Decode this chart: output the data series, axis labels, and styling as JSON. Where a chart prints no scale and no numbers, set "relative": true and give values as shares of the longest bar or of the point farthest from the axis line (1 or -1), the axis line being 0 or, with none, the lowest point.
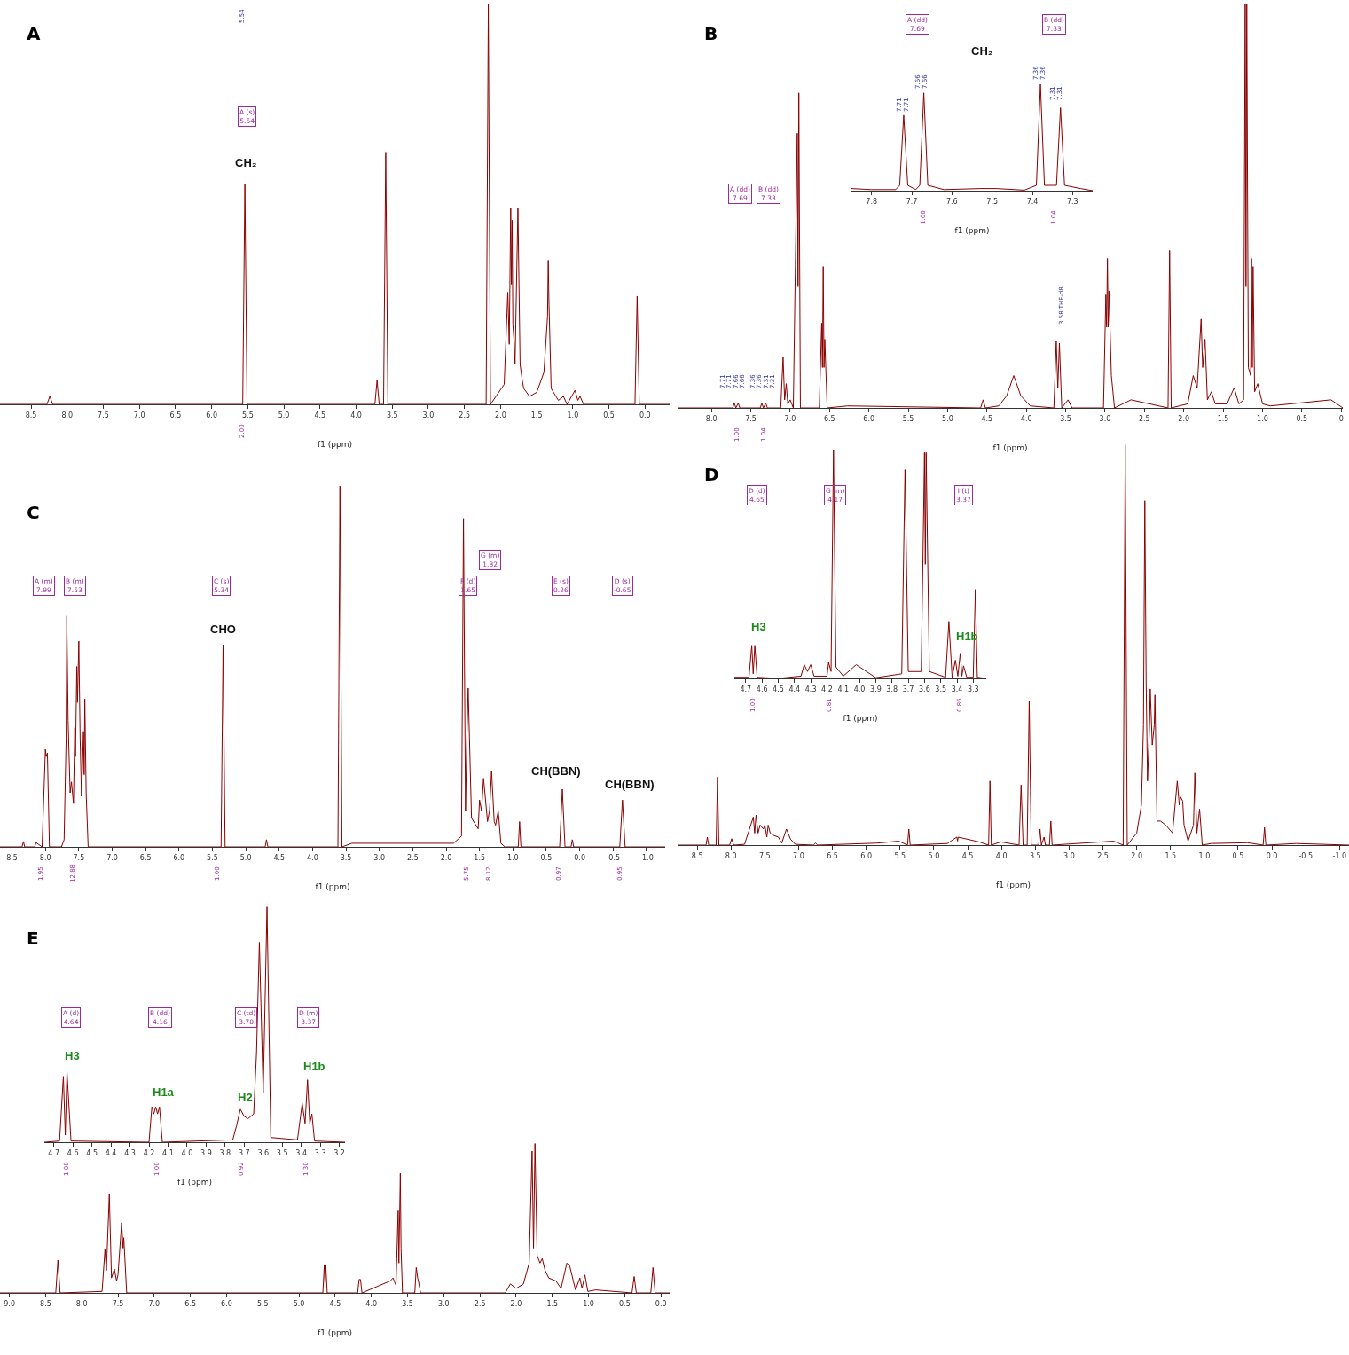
{
  "chart_data": [
    {
      "type": "line",
      "title": "A",
      "xlabel": "f1 (ppm)",
      "relative": true,
      "xlim": [
        8.93,
        -0.34
      ],
      "xticks": [
        8.5,
        {
          "value": 8,
          "label": "8.0"
        },
        7.5,
        {
          "value": 7,
          "label": "7.0"
        },
        6.5,
        {
          "value": 6,
          "label": "6.0"
        },
        5.5,
        {
          "value": 5,
          "label": "5.0"
        },
        4.5,
        {
          "value": 4,
          "label": "4.0"
        },
        3.5,
        {
          "value": 3,
          "label": "3.0"
        },
        2.5,
        {
          "value": 2,
          "label": "2.0"
        },
        1.5,
        {
          "value": 1,
          "label": "1.0"
        },
        0.5,
        {
          "value": 0,
          "label": "0.0"
        }
      ],
      "x": [
        8.93,
        8.28,
        8.24,
        8.2,
        5.57,
        5.54,
        5.51,
        3.74,
        3.71,
        3.68,
        3.62,
        3.59,
        3.56,
        2.2,
        2.17,
        2.14,
        1.95,
        1.9,
        1.88,
        1.86,
        1.85,
        1.84,
        1.83,
        1.81,
        1.8,
        1.76,
        1.73,
        1.7,
        1.68,
        1.6,
        1.5,
        1.4,
        1.35,
        1.34,
        1.33,
        1.3,
        1.2,
        1.13,
        1.08,
        0.97,
        0.93,
        0.9,
        0.85,
        0.14,
        0.11,
        0.08,
        -0.34
      ],
      "series": [
        {
          "color": "#8b0000",
          "values": [
            0,
            0,
            0.02,
            0,
            0,
            0.55,
            0,
            0,
            0.06,
            0,
            0,
            0.63,
            0,
            0,
            1,
            0,
            0.05,
            0.28,
            0.15,
            0.49,
            0.3,
            0.46,
            0.2,
            0.15,
            0.1,
            0.49,
            0.1,
            0.06,
            0.04,
            0.02,
            0.03,
            0.08,
            0.22,
            0.36,
            0.25,
            0.04,
            0.01,
            0.02,
            0,
            0.035,
            0.01,
            0.02,
            0,
            0,
            0.27,
            0,
            0
          ]
        }
      ],
      "annotations": [
        "5.54",
        "A (s)\n5.54",
        "CH₂",
        "2.00"
      ]
    },
    {
      "type": "line",
      "title": "B",
      "xlabel": "f1 (ppm)",
      "relative": true,
      "xlim": [
        8.43,
        -0.02
      ],
      "xticks": [
        {
          "value": 8,
          "label": "8.0"
        },
        7.5,
        {
          "value": 7,
          "label": "7.0"
        },
        6.5,
        {
          "value": 6,
          "label": "6.0"
        },
        5.5,
        {
          "value": 5,
          "label": "5.0"
        },
        4.5,
        {
          "value": 4,
          "label": "4.0"
        },
        3.5,
        {
          "value": 3,
          "label": "3.0"
        },
        2.5,
        {
          "value": 2,
          "label": "2.0"
        },
        1.5,
        {
          "value": 1,
          "label": "1.0"
        },
        0.5,
        0
      ],
      "x": [
        8.43,
        7.73,
        7.71,
        7.69,
        7.66,
        7.64,
        7.38,
        7.36,
        7.34,
        7.31,
        7.29,
        7.12,
        7.09,
        7.07,
        7.05,
        7.03,
        7.0,
        6.96,
        6.91,
        6.9,
        6.89,
        6.87,
        6.63,
        6.6,
        6.59,
        6.58,
        6.57,
        6.56,
        6.53,
        6.27,
        4.58,
        4.55,
        4.52,
        4.35,
        4.25,
        4.16,
        4.07,
        3.95,
        3.65,
        3.62,
        3.6,
        3.58,
        3.55,
        3.47,
        3.42,
        3.02,
        2.99,
        2.98,
        2.97,
        2.96,
        2.95,
        2.92,
        2.88,
        2.67,
        2.2,
        2.18,
        2.16,
        1.95,
        1.88,
        1.83,
        1.78,
        1.76,
        1.73,
        1.7,
        1.65,
        1.6,
        1.45,
        1.36,
        1.3,
        1.24,
        1.22,
        1.21,
        1.2,
        1.18,
        1.15,
        1.14,
        1.13,
        1.12,
        1.1,
        1.06,
        1.0,
        0.9,
        0.13,
        -0.02
      ],
      "series": [
        {
          "color": "#8b0000",
          "values": [
            0,
            0,
            0.012,
            0,
            0.012,
            0,
            0,
            0.012,
            0,
            0.012,
            0,
            0,
            0.125,
            0.02,
            0.06,
            0.01,
            0.02,
            0,
            0.68,
            0.3,
            0.78,
            0,
            0,
            0.21,
            0.1,
            0.35,
            0.1,
            0.17,
            0,
            0.005,
            0,
            0.02,
            0,
            0.005,
            0.03,
            0.08,
            0.03,
            0.005,
            0,
            0.165,
            0.05,
            0.16,
            0,
            0.02,
            0,
            0,
            0.28,
            0.2,
            0.37,
            0.2,
            0.29,
            0.08,
            0,
            0.02,
            0,
            0.39,
            0,
            0.01,
            0.08,
            0.05,
            0.22,
            0.1,
            0.17,
            0.02,
            0.04,
            0.01,
            0.01,
            0.05,
            0.01,
            0.02,
            1,
            0.3,
            1,
            0.1,
            0.08,
            0.37,
            0.1,
            0.35,
            0.04,
            0.06,
            0.01,
            0.005,
            0.02,
            0
          ]
        }
      ],
      "annotations": [
        "A (dd)\n7.69",
        "B (dd)\n7.33",
        "7.71",
        "7.71",
        "7.66",
        "7.66",
        "7.36",
        "7.36",
        "7.31",
        "7.31",
        "3.58 THF-d8",
        "1.00",
        "1.04"
      ]
    },
    {
      "type": "line",
      "xlabel": "f1 (ppm)",
      "relative": true,
      "xlim": [
        7.85,
        7.25
      ],
      "xticks": [
        7.8,
        7.7,
        7.6,
        7.5,
        7.4,
        7.3
      ],
      "x": [
        7.85,
        7.8,
        7.74,
        7.73,
        7.72,
        7.71,
        7.69,
        7.68,
        7.67,
        7.66,
        7.62,
        7.53,
        7.49,
        7.42,
        7.39,
        7.38,
        7.37,
        7.34,
        7.33,
        7.32,
        7.28,
        7.25
      ],
      "series": [
        {
          "color": "#8b0000",
          "values": [
            0.02,
            0.01,
            0.01,
            0.05,
            0.71,
            0.05,
            0.01,
            0.05,
            0.92,
            0.05,
            0.01,
            0.02,
            0.02,
            0.005,
            0.05,
            1,
            0.05,
            0.05,
            0.78,
            0.05,
            0.02,
            0
          ]
        }
      ],
      "annotations": [
        "A (dd)\n7.69",
        "B (dd)\n7.33",
        "CH₂",
        "7.71",
        "7.71",
        "7.66",
        "7.66",
        "7.36",
        "7.36",
        "7.31",
        "7.31",
        "1.00",
        "1.04"
      ]
    },
    {
      "type": "line",
      "title": "C",
      "xlabel": "f1 (ppm)",
      "relative": true,
      "xlim": [
        8.68,
        -1.28
      ],
      "xticks": [
        8.5,
        {
          "value": 8,
          "label": "8.0"
        },
        7.5,
        {
          "value": 7,
          "label": "7.0"
        },
        6.5,
        {
          "value": 6,
          "label": "6.0"
        },
        5.5,
        {
          "value": 5,
          "label": "5.0"
        },
        4.5,
        {
          "value": 4,
          "label": "4.0"
        },
        3.5,
        {
          "value": 3,
          "label": "3.0"
        },
        2.5,
        {
          "value": 2,
          "label": "2.0"
        },
        1.5,
        {
          "value": 1,
          "label": "1.0"
        },
        0.5,
        {
          "value": 0,
          "label": "0.0"
        },
        -0.5,
        {
          "value": -1,
          "label": "-1.0"
        }
      ],
      "x": [
        8.68,
        8.35,
        8.33,
        8.31,
        8.16,
        8.14,
        8.05,
        8.0,
        7.99,
        7.97,
        7.94,
        7.76,
        7.72,
        7.69,
        7.68,
        7.66,
        7.63,
        7.61,
        7.58,
        7.56,
        7.55,
        7.53,
        7.52,
        7.5,
        7.48,
        7.46,
        7.43,
        7.42,
        7.41,
        7.39,
        7.36,
        5.37,
        5.34,
        5.31,
        4.71,
        4.69,
        4.67,
        3.62,
        3.59,
        3.56,
        3.41,
        1.89,
        1.77,
        1.74,
        1.71,
        1.69,
        1.67,
        1.62,
        1.52,
        1.5,
        1.47,
        1.44,
        1.38,
        1.35,
        1.32,
        1.28,
        1.26,
        1.22,
        1.18,
        1.12,
        0.92,
        0.9,
        0.88,
        0.3,
        0.26,
        0.22,
        0.13,
        0.11,
        0.09,
        -0.6,
        -0.64,
        -0.68,
        -1.28
      ],
      "series": [
        {
          "color": "#8b0000",
          "values": [
            0,
            0,
            0.015,
            0,
            0,
            0.012,
            0,
            0.27,
            0.25,
            0.26,
            0,
            0,
            0.02,
            0.3,
            0.64,
            0.35,
            0.15,
            0.18,
            0.12,
            0.33,
            0.25,
            0.5,
            0.4,
            0.57,
            0.3,
            0.14,
            0.32,
            0.2,
            0.41,
            0.15,
            0,
            0,
            0.56,
            0,
            0,
            0.02,
            0,
            0,
            1,
            0,
            0.01,
            0.01,
            0.03,
            0.91,
            0.1,
            0.3,
            0.44,
            0.08,
            0.05,
            0.13,
            0.1,
            0.19,
            0.07,
            0.1,
            0.21,
            0.07,
            0.06,
            0.1,
            0.01,
            0,
            0,
            0.07,
            0,
            0,
            0.16,
            0,
            0,
            0.02,
            0,
            0,
            0.13,
            0,
            0
          ]
        }
      ],
      "annotations": [
        "A (m)\n7.99",
        "B (m)\n7.53",
        "C (s)\n5.34",
        "F (d)\n1.65",
        "G (m)\n1.32",
        "E (s)\n0.26",
        "D (s)\n-0.65",
        "CHO",
        "CH(BBN)",
        "CH(BBN)",
        "1.95",
        "12.88",
        "1.00",
        "5.75",
        "8.12",
        "0.97",
        "0.95"
      ]
    },
    {
      "type": "line",
      "title": "D",
      "xlabel": "f1 (ppm)",
      "relative": true,
      "xlim": [
        8.79,
        -1.14
      ],
      "xticks": [
        8.5,
        {
          "value": 8,
          "label": "8.0"
        },
        7.5,
        {
          "value": 7,
          "label": "7.0"
        },
        6.5,
        {
          "value": 6,
          "label": "6.0"
        },
        5.5,
        {
          "value": 5,
          "label": "5.0"
        },
        4.5,
        {
          "value": 4,
          "label": "4.0"
        },
        3.5,
        {
          "value": 3,
          "label": "3.0"
        },
        2.5,
        {
          "value": 2,
          "label": "2.0"
        },
        1.5,
        {
          "value": 1,
          "label": "1.0"
        },
        0.5,
        {
          "value": 0,
          "label": "0.0"
        },
        -0.5,
        {
          "value": -1,
          "label": "-1.0"
        }
      ],
      "x": [
        8.79,
        8.37,
        8.35,
        8.33,
        8.22,
        8.2,
        8.18,
        8.02,
        7.99,
        7.96,
        7.8,
        7.67,
        7.65,
        7.63,
        7.6,
        7.57,
        7.52,
        7.5,
        7.47,
        7.45,
        7.42,
        7.38,
        7.3,
        7.25,
        7.18,
        7.12,
        7.05,
        6.78,
        6.75,
        6.72,
        5.84,
        5.52,
        5.39,
        5.37,
        5.35,
        4.8,
        4.66,
        4.65,
        4.64,
        4.33,
        4.19,
        4.17,
        4.15,
        4.01,
        3.74,
        3.71,
        3.68,
        3.62,
        3.59,
        3.56,
        3.45,
        3.43,
        3.41,
        3.37,
        3.35,
        3.29,
        3.27,
        3.25,
        2.34,
        2.2,
        2.17,
        2.14,
        2.0,
        1.93,
        1.9,
        1.88,
        1.86,
        1.84,
        1.81,
        1.8,
        1.77,
        1.74,
        1.73,
        1.7,
        1.65,
        1.57,
        1.47,
        1.4,
        1.37,
        1.35,
        1.32,
        1.3,
        1.24,
        1.16,
        1.14,
        1.11,
        1.07,
        1.03,
        0.9,
        0.36,
        0.13,
        0.11,
        0.09,
        -0.36,
        -1.14
      ],
      "series": [
        {
          "color": "#8b0000",
          "values": [
            0,
            0,
            0.02,
            0,
            0,
            0.17,
            0,
            0,
            0.016,
            0,
            0.002,
            0.07,
            0.03,
            0.075,
            0.03,
            0.05,
            0.04,
            0.05,
            0.02,
            0.05,
            0.03,
            0.025,
            0.02,
            0.005,
            0.04,
            0.015,
            0.002,
            0,
            0.005,
            0,
            0.005,
            0.01,
            0,
            0.04,
            0,
            0.004,
            0.02,
            0.01,
            0.02,
            0.008,
            0,
            0.16,
            0,
            0.008,
            0,
            0.15,
            0,
            0,
            0.36,
            0,
            0,
            0.04,
            0,
            0.02,
            0,
            0,
            0.06,
            0,
            0.01,
            0,
            1,
            0,
            0.03,
            0.1,
            0.3,
            0.86,
            0.4,
            0.16,
            0.3,
            0.39,
            0.25,
            0.3,
            0.375,
            0.06,
            0.06,
            0.05,
            0.03,
            0.16,
            0.1,
            0.12,
            0.11,
            0.05,
            0.01,
            0.05,
            0.18,
            0.03,
            0.09,
            0,
            0.004,
            0.006,
            0,
            0.044,
            0,
            0.004,
            0
          ]
        }
      ]
    },
    {
      "type": "line",
      "xlabel": "f1 (ppm)",
      "relative": true,
      "xlim": [
        4.77,
        3.22
      ],
      "xticks": [
        4.7,
        4.6,
        4.5,
        4.4,
        4.3,
        4.2,
        4.1,
        {
          "value": 4,
          "label": "4.0"
        },
        3.9,
        3.8,
        3.7,
        3.6,
        3.5,
        3.4,
        3.3
      ],
      "x": [
        4.77,
        4.68,
        4.663,
        4.654,
        4.644,
        4.63,
        4.5,
        4.36,
        4.34,
        4.32,
        4.3,
        4.28,
        4.2,
        4.19,
        4.175,
        4.16,
        4.145,
        4.1,
        4.02,
        3.9,
        3.74,
        3.72,
        3.7,
        3.62,
        3.6,
        3.595,
        3.59,
        3.57,
        3.47,
        3.45,
        3.43,
        3.41,
        3.395,
        3.38,
        3.37,
        3.36,
        3.34,
        3.3,
        3.287,
        3.275,
        3.22
      ],
      "series": [
        {
          "color": "#8b0000",
          "values": [
            0.005,
            0.005,
            0.145,
            0.02,
            0.145,
            0.005,
            0,
            0.01,
            0.06,
            0.03,
            0.06,
            0.01,
            0.01,
            0.07,
            0.03,
            1,
            0.05,
            0.01,
            0.06,
            0.003,
            0.02,
            0.915,
            0.03,
            0.03,
            0.99,
            0.5,
            0.99,
            0.03,
            0.005,
            0.25,
            0.005,
            0.08,
            0.01,
            0.11,
            0.01,
            0.055,
            0.005,
            0.005,
            0.39,
            0.005,
            0
          ]
        }
      ],
      "annotations": [
        "D (d)\n4.65",
        "G (m)\n4.17",
        "I (t)\n3.37",
        "H3",
        "H1b",
        "1.00",
        "0.81",
        "0.86"
      ]
    },
    {
      "type": "line",
      "title": "E",
      "xlabel": "f1 (ppm)",
      "relative": true,
      "xlim": [
        9.13,
        -0.12
      ],
      "xticks": [
        {
          "value": 9,
          "label": "9.0"
        },
        8.5,
        {
          "value": 8,
          "label": "8.0"
        },
        7.5,
        {
          "value": 7,
          "label": "7.0"
        },
        6.5,
        {
          "value": 6,
          "label": "6.0"
        },
        5.5,
        {
          "value": 5,
          "label": "5.0"
        },
        4.5,
        {
          "value": 4,
          "label": "4.0"
        },
        3.5,
        {
          "value": 3,
          "label": "3.0"
        },
        2.5,
        {
          "value": 2,
          "label": "2.0"
        },
        1.5,
        {
          "value": 1,
          "label": "1.0"
        },
        0.5,
        {
          "value": 0,
          "label": "0.0"
        }
      ],
      "x": [
        9.13,
        8.36,
        8.33,
        8.3,
        7.72,
        7.68,
        7.66,
        7.62,
        7.59,
        7.55,
        7.52,
        7.5,
        7.45,
        7.43,
        7.42,
        7.38,
        4.67,
        4.65,
        4.64,
        4.63,
        4.61,
        4.19,
        4.17,
        4.15,
        4.13,
        3.74,
        3.7,
        3.66,
        3.63,
        3.62,
        3.6,
        3.59,
        3.57,
        3.4,
        3.38,
        3.36,
        3.35,
        3.32,
        2.15,
        2.08,
        2.0,
        1.9,
        1.82,
        1.78,
        1.76,
        1.74,
        1.71,
        1.67,
        1.64,
        1.6,
        1.55,
        1.45,
        1.38,
        1.3,
        1.26,
        1.18,
        1.12,
        1.09,
        1.05,
        1.01,
        0.9,
        0.4,
        0.37,
        0.34,
        0.14,
        0.11,
        0.08,
        -0.12
      ],
      "series": [
        {
          "color": "#8b0000",
          "values": [
            0,
            0,
            0.22,
            0,
            0.01,
            0.29,
            0.15,
            0.66,
            0.1,
            0.16,
            0.08,
            0.12,
            0.47,
            0.3,
            0.37,
            0,
            0,
            0.19,
            0.05,
            0.19,
            0,
            0,
            0.09,
            0.09,
            0,
            0.08,
            0.1,
            0.05,
            0.55,
            0.2,
            0.8,
            0.3,
            0,
            0,
            0.17,
            0.1,
            0.08,
            0,
            0,
            0.06,
            0.03,
            0.06,
            0.2,
            0.95,
            0.3,
            1,
            0.25,
            0.2,
            0.23,
            0.15,
            0.1,
            0.08,
            0.03,
            0.2,
            0.18,
            0.02,
            0.1,
            0.03,
            0.12,
            0.01,
            0.02,
            0,
            0.11,
            0,
            0,
            0.17,
            0,
            0
          ]
        }
      ]
    },
    {
      "type": "line",
      "xlabel": "f1 (ppm)",
      "relative": true,
      "xlim": [
        4.75,
        3.17
      ],
      "xticks": [
        4.7,
        4.6,
        4.5,
        4.4,
        4.3,
        4.2,
        4.1,
        {
          "value": 4,
          "label": "4.0"
        },
        3.9,
        3.8,
        3.7,
        3.6,
        3.5,
        3.4,
        3.3,
        3.2
      ],
      "x": [
        4.75,
        4.67,
        4.65,
        4.64,
        4.631,
        4.61,
        4.2,
        4.185,
        4.175,
        4.165,
        4.155,
        4.145,
        4.13,
        3.76,
        3.74,
        3.72,
        3.7,
        3.68,
        3.65,
        3.635,
        3.62,
        3.6,
        3.58,
        3.56,
        3.42,
        3.395,
        3.38,
        3.367,
        3.355,
        3.344,
        3.33,
        3.17
      ],
      "series": [
        {
          "color": "#8b0000",
          "values": [
            0,
            0.005,
            0.28,
            0.03,
            0.3,
            0.005,
            0,
            0.15,
            0.12,
            0.15,
            0.12,
            0.15,
            0,
            0.01,
            0.07,
            0.14,
            0.11,
            0.1,
            0.12,
            0.38,
            0.85,
            0.21,
            1,
            0.02,
            0.01,
            0.165,
            0.08,
            0.265,
            0.08,
            0.12,
            0.005,
            0
          ]
        }
      ],
      "annotations": [
        "A (d)\n4.64",
        "B (dd)\n4.16",
        "C (td)\n3.70",
        "D (m)\n3.37",
        "H3",
        "H1a",
        "H2",
        "H1b",
        "1.00",
        "1.00",
        "0.92",
        "1.30"
      ]
    }
  ]
}
